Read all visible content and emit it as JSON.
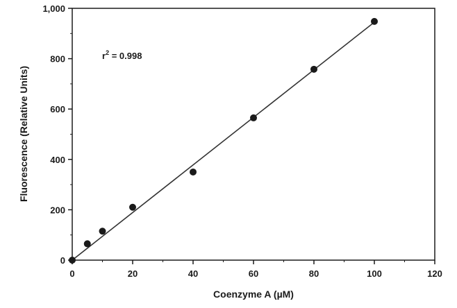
{
  "chart_data": {
    "type": "scatter",
    "xlabel": "Coenzyme A (µM)",
    "ylabel": "Fluorescence (Relative Units)",
    "xlim": [
      0,
      120
    ],
    "ylim": [
      0,
      1000
    ],
    "x_ticks": [
      0,
      20,
      40,
      60,
      80,
      100,
      120
    ],
    "y_ticks": [
      0,
      200,
      400,
      600,
      800,
      1000
    ],
    "x_tick_labels": [
      "0",
      "20",
      "40",
      "60",
      "80",
      "100",
      "120"
    ],
    "y_tick_labels": [
      "0",
      "200",
      "400",
      "600",
      "800",
      "1,000"
    ],
    "grid": false,
    "annotation": {
      "prefix": "r",
      "superscript": "2",
      "suffix": " = 0.998"
    },
    "series": [
      {
        "x": [
          0,
          5,
          10,
          20,
          40,
          60,
          80,
          100
        ],
        "y": [
          0,
          65,
          115,
          210,
          350,
          565,
          758,
          948
        ],
        "color": "#1a1a1a"
      }
    ],
    "fit_line": {
      "x": [
        0,
        100
      ],
      "y": [
        0,
        945
      ],
      "color": "#333333"
    }
  }
}
